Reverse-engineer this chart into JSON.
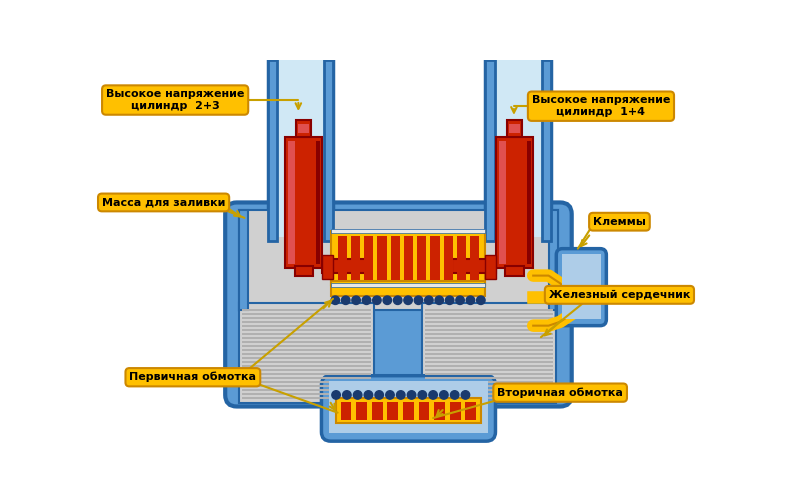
{
  "background_color": "#ffffff",
  "blue_med": "#5b9bd5",
  "blue_dark": "#2464a4",
  "blue_light": "#aecde8",
  "blue_vlight": "#d0e8f5",
  "gray_light": "#d0d0d0",
  "gray_stripe": "#b0b0b0",
  "red_main": "#cc2200",
  "red_light": "#e05050",
  "yellow_main": "#ffc000",
  "yellow_dark": "#cc8800",
  "blue_dots": "#1a3a6e",
  "white_sep": "#ffffff",
  "label_bg": "#ffc000",
  "label_text": "#000000",
  "arrow_color": "#c8a000",
  "labels": {
    "top_left": "Высокое напряжение\nцилиндр  2+3",
    "top_right": "Высокое напряжение\nцилиндр  1+4",
    "mid_left": "Масса для заливки",
    "mid_right": "Клеммы",
    "bot_left": "Первичная обмотка",
    "bot_right": "Вторичная обмотка",
    "iron_core": "Железный сердечник"
  }
}
